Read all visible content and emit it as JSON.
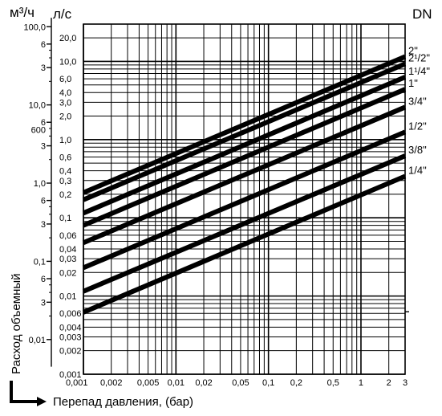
{
  "chart_data": {
    "type": "line",
    "y_left_unit": "м³/ч",
    "y_inner_unit": "л/с",
    "dn_header": "DN",
    "ylabel": "Расход объемный",
    "xlabel": "Перепад давления, (бар)",
    "x_scale": "log",
    "y_scale": "log",
    "xlim": [
      0.001,
      3
    ],
    "ylim_ls": [
      0.001,
      30
    ],
    "x_ticks": [
      {
        "v": 0.001,
        "t": "0,001"
      },
      {
        "v": 0.002,
        "t": "0,002"
      },
      {
        "v": 0.005,
        "t": "0,005"
      },
      {
        "v": 0.01,
        "t": "0,01"
      },
      {
        "v": 0.02,
        "t": "0,02"
      },
      {
        "v": 0.05,
        "t": "0,05"
      },
      {
        "v": 0.1,
        "t": "0,1"
      },
      {
        "v": 0.2,
        "t": "0,2"
      },
      {
        "v": 0.5,
        "t": "0,5"
      },
      {
        "v": 1,
        "t": "1"
      },
      {
        "v": 2,
        "t": "2"
      },
      {
        "v": 3,
        "t": "3"
      }
    ],
    "y_ticks_ls": [
      {
        "v": 20,
        "t": "20,0"
      },
      {
        "v": 10,
        "t": "10,0"
      },
      {
        "v": 6,
        "t": "6,0"
      },
      {
        "v": 4,
        "t": "4,0"
      },
      {
        "v": 3,
        "t": "3,0"
      },
      {
        "v": 2,
        "t": "2,0"
      },
      {
        "v": 1,
        "t": "1,0"
      },
      {
        "v": 0.6,
        "t": "0,6"
      },
      {
        "v": 0.4,
        "t": "0,4"
      },
      {
        "v": 0.3,
        "t": "0,3"
      },
      {
        "v": 0.2,
        "t": "0,2"
      },
      {
        "v": 0.1,
        "t": "0,1"
      },
      {
        "v": 0.06,
        "t": "0,06"
      },
      {
        "v": 0.04,
        "t": "0,04"
      },
      {
        "v": 0.03,
        "t": "0,03"
      },
      {
        "v": 0.02,
        "t": "0,02"
      },
      {
        "v": 0.01,
        "t": "0,01"
      },
      {
        "v": 0.006,
        "t": "0,006"
      },
      {
        "v": 0.004,
        "t": "0,004"
      },
      {
        "v": 0.003,
        "t": "0,003"
      },
      {
        "v": 0.002,
        "t": "0,002"
      },
      {
        "v": 0.001,
        "t": "0,001"
      }
    ],
    "y_ticks_m3h": [
      {
        "v": 100,
        "t": "100,0"
      },
      {
        "v": 60,
        "t": "6"
      },
      {
        "v": 30,
        "t": "3"
      },
      {
        "v": 10,
        "t": "10,0"
      },
      {
        "v": 6,
        "t": "6"
      },
      {
        "v": 3,
        "t": "3"
      },
      {
        "v": 1,
        "t": "1,0"
      },
      {
        "v": 0.6,
        "t": "6"
      },
      {
        "v": 0.3,
        "t": "3"
      },
      {
        "v": 0.1,
        "t": "0,1"
      },
      {
        "v": 0.06,
        "t": "6"
      },
      {
        "v": 0.03,
        "t": "3"
      },
      {
        "v": 0.01,
        "t": "0,01"
      }
    ],
    "extra_label_600": "600",
    "series": [
      {
        "name": "2\"",
        "q_ls": [
          0.21,
          11.5
        ]
      },
      {
        "name": "2¹/2\"",
        "q_ls": [
          0.17,
          9.3
        ]
      },
      {
        "name": "1¹/4\"",
        "q_ls": [
          0.115,
          6.3
        ]
      },
      {
        "name": "1\"",
        "q_ls": [
          0.08,
          4.4
        ]
      },
      {
        "name": "3/4\"",
        "q_ls": [
          0.048,
          2.6
        ]
      },
      {
        "name": "1/2\"",
        "q_ls": [
          0.023,
          1.25
        ]
      },
      {
        "name": "3/8\"",
        "q_ls": [
          0.0115,
          0.62
        ]
      },
      {
        "name": "1/4\"",
        "q_ls": [
          0.0062,
          0.34
        ]
      }
    ]
  }
}
